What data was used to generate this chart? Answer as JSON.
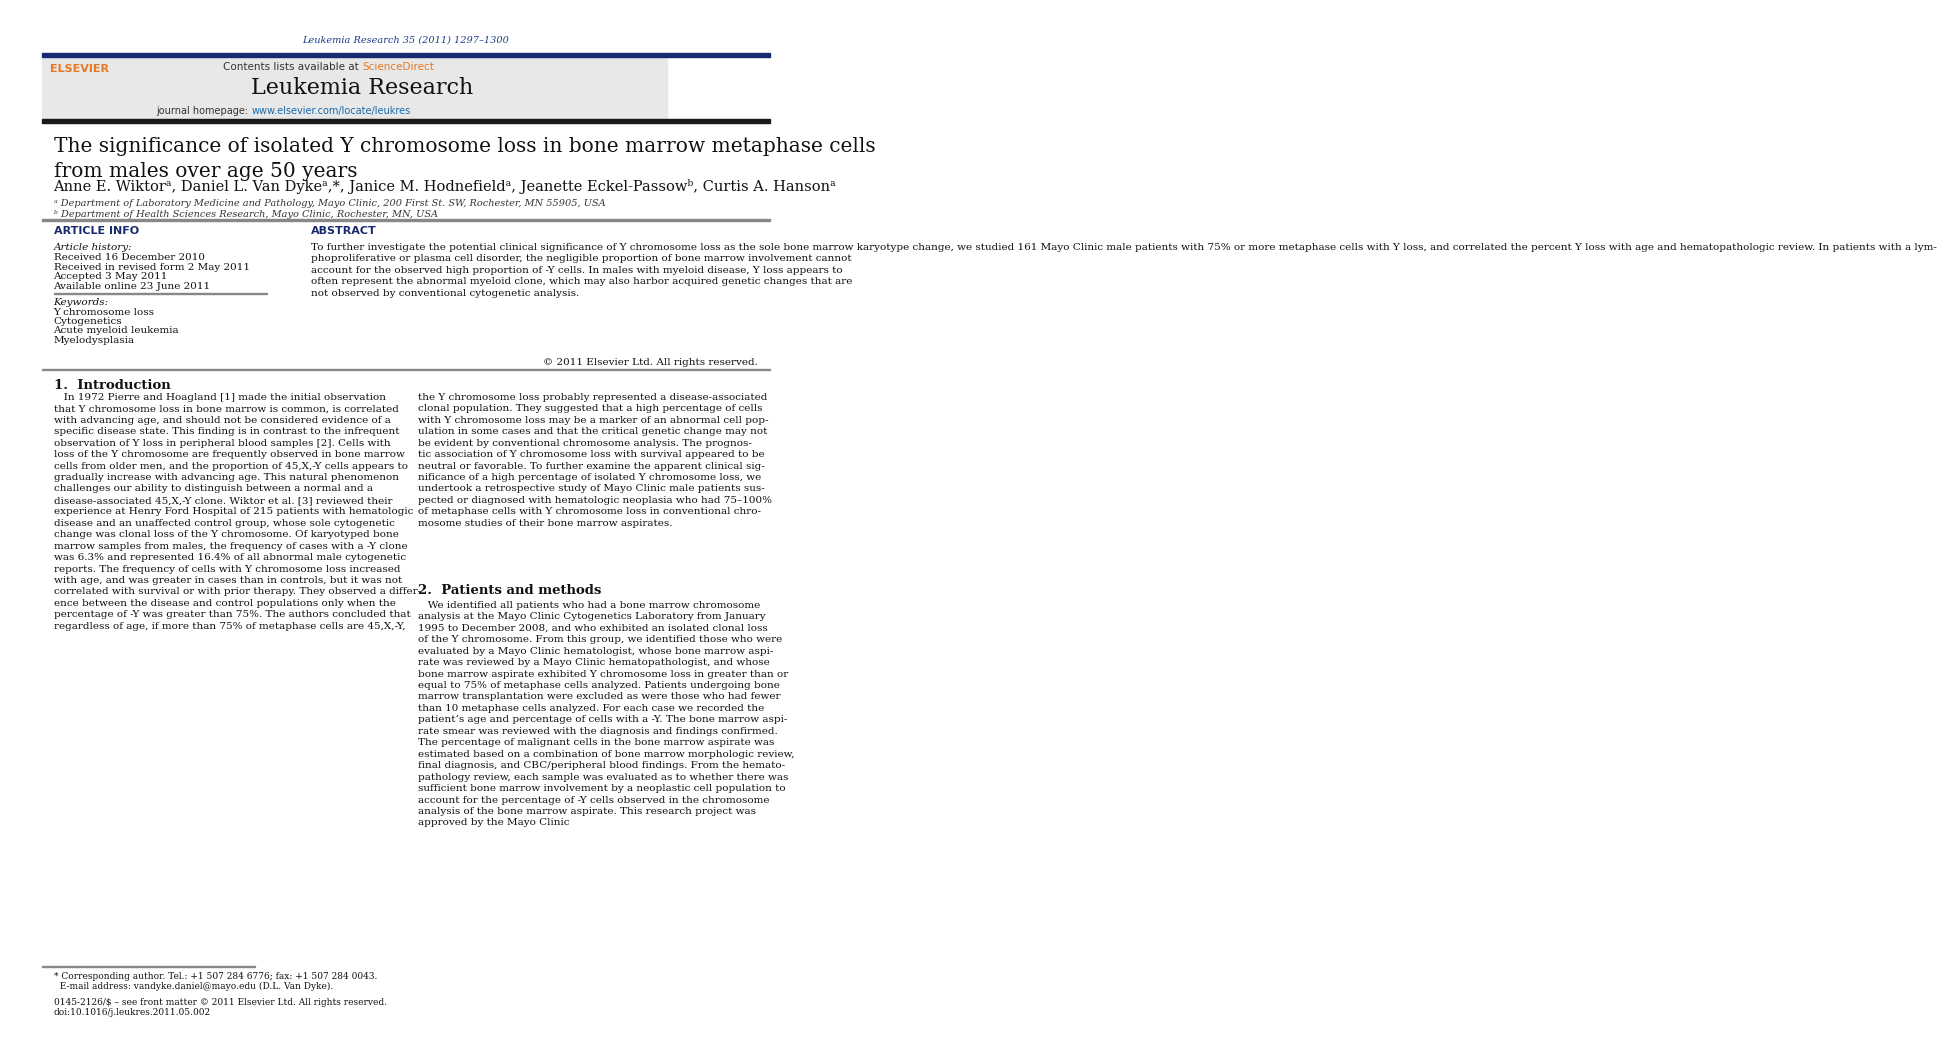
{
  "page_width": 10.21,
  "page_height": 13.51,
  "bg_color": "#ffffff",
  "header_citation": "Leukemia Research 35 (2011) 1297–1300",
  "header_citation_color": "#1a3a8a",
  "journal_banner_bg": "#e8e8e8",
  "journal_name": "Leukemia Research",
  "top_bar_color": "#1a2a6e",
  "black_bar_color": "#1a1a1a",
  "article_title": "The significance of isolated Y chromosome loss in bone marrow metaphase cells\nfrom males over age 50 years",
  "abstract_text": "To further investigate the potential clinical significance of Y chromosome loss as the sole bone marrow karyotype change, we studied 161 Mayo Clinic male patients with 75% or more metaphase cells with Y loss, and correlated the percent Y loss with age and hematopathologic review. In patients with a lym-\nphoproliferative or plasma cell disorder, the negligible proportion of bone marrow involvement cannot\naccount for the observed high proportion of -Y cells. In males with myeloid disease, Y loss appears to\noften represent the abnormal myeloid clone, which may also harbor acquired genetic changes that are\nnot observed by conventional cytogenetic analysis.",
  "copyright": "© 2011 Elsevier Ltd. All rights reserved.",
  "elsevier_color": "#e87722",
  "sciencedirect_color": "#e87722",
  "url_color": "#1a6aaa",
  "heading_color": "#1a2a6e",
  "text_color": "#000000",
  "affil_color": "#333333"
}
